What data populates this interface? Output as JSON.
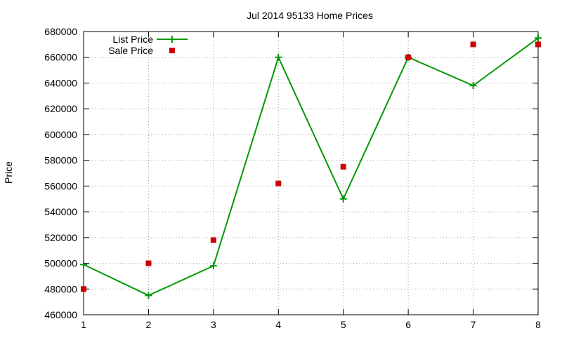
{
  "chart_data": {
    "type": "line",
    "title": "Jul 2014 95133 Home Prices",
    "xlabel": "",
    "ylabel": "Price",
    "x": [
      1,
      2,
      3,
      4,
      5,
      6,
      7,
      8
    ],
    "xlim": [
      1,
      8
    ],
    "ylim": [
      460000,
      680000
    ],
    "x_ticks": [
      "1",
      "2",
      "3",
      "4",
      "5",
      "6",
      "7",
      "8"
    ],
    "y_ticks": [
      "460000",
      "480000",
      "500000",
      "520000",
      "540000",
      "560000",
      "580000",
      "600000",
      "620000",
      "640000",
      "660000",
      "680000"
    ],
    "grid": true,
    "legend_position": "top-left",
    "series": [
      {
        "name": "List Price",
        "style": "line-with-plus-markers",
        "color": "#009900",
        "values": [
          499000,
          475000,
          498000,
          660000,
          550000,
          660000,
          638000,
          675000
        ]
      },
      {
        "name": "Sale Price",
        "style": "square-markers",
        "color": "#cc0000",
        "values": [
          480000,
          500000,
          518000,
          562000,
          575000,
          660000,
          670000,
          670000
        ]
      }
    ]
  }
}
